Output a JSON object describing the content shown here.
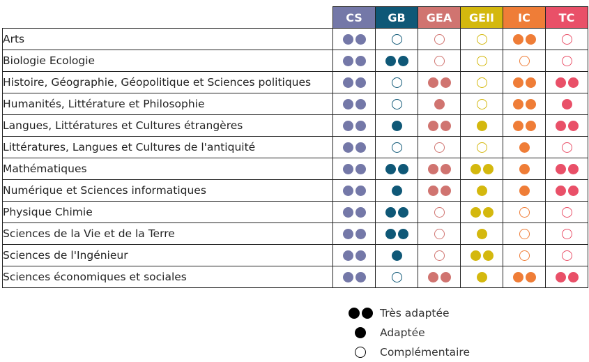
{
  "columns": [
    {
      "code": "CS",
      "color": "#7478a8"
    },
    {
      "code": "GB",
      "color": "#0f5877"
    },
    {
      "code": "GEA",
      "color": "#d07470"
    },
    {
      "code": "GEII",
      "color": "#d4b80e"
    },
    {
      "code": "IC",
      "color": "#ef7d37"
    },
    {
      "code": "TC",
      "color": "#e95068"
    }
  ],
  "rows": [
    {
      "subject": "Arts",
      "levels": [
        2,
        0,
        0,
        0,
        2,
        0
      ]
    },
    {
      "subject": "Biologie Ecologie",
      "levels": [
        2,
        2,
        0,
        0,
        0,
        0
      ]
    },
    {
      "subject": "Histoire, Géographie, Géopolitique et Sciences politiques",
      "levels": [
        2,
        0,
        2,
        0,
        2,
        2
      ]
    },
    {
      "subject": "Humanités, Littérature  et Philosophie",
      "levels": [
        2,
        0,
        1,
        0,
        2,
        1
      ]
    },
    {
      "subject": "Langues, Littératures et Cultures étrangères",
      "levels": [
        2,
        1,
        2,
        1,
        2,
        2
      ]
    },
    {
      "subject": "Littératures, Langues et Cultures de l'antiquité",
      "levels": [
        2,
        0,
        0,
        0,
        1,
        0
      ]
    },
    {
      "subject": "Mathématiques",
      "levels": [
        2,
        2,
        2,
        2,
        1,
        2
      ]
    },
    {
      "subject": "Numérique et Sciences informatiques",
      "levels": [
        2,
        1,
        2,
        1,
        1,
        2
      ]
    },
    {
      "subject": "Physique Chimie",
      "levels": [
        2,
        2,
        0,
        2,
        0,
        0
      ]
    },
    {
      "subject": "Sciences de la Vie et de la Terre",
      "levels": [
        2,
        2,
        0,
        1,
        0,
        0
      ]
    },
    {
      "subject": "Sciences de l'Ingénieur",
      "levels": [
        2,
        1,
        0,
        2,
        0,
        0
      ]
    },
    {
      "subject": "Sciences économiques et sociales",
      "levels": [
        2,
        0,
        2,
        1,
        2,
        2
      ]
    }
  ],
  "legend": {
    "tres_adaptee": "Très adaptée",
    "adaptee": "Adaptée",
    "complementaire": "Complémentaire"
  }
}
